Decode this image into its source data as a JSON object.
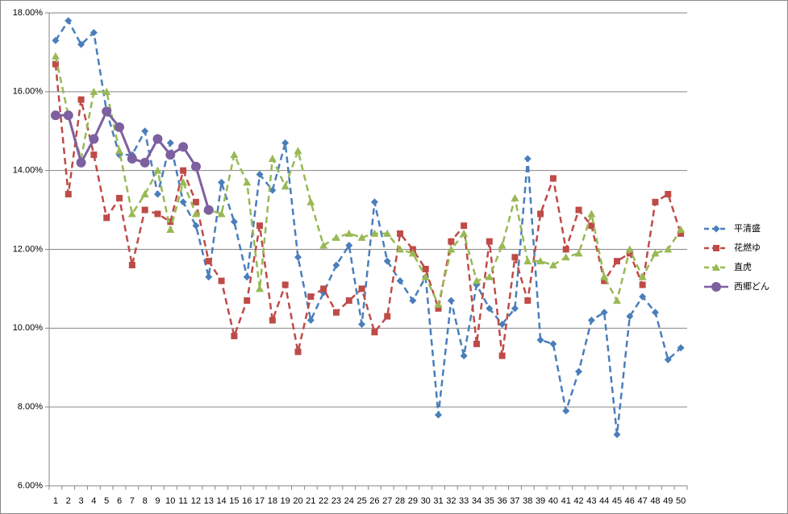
{
  "chart_data": {
    "type": "line",
    "categories": [
      "1",
      "2",
      "3",
      "4",
      "5",
      "6",
      "7",
      "8",
      "9",
      "10",
      "11",
      "12",
      "13",
      "14",
      "15",
      "16",
      "17",
      "18",
      "19",
      "20",
      "21",
      "22",
      "23",
      "24",
      "25",
      "26",
      "27",
      "28",
      "29",
      "30",
      "31",
      "32",
      "33",
      "34",
      "35",
      "36",
      "37",
      "38",
      "39",
      "40",
      "41",
      "42",
      "43",
      "44",
      "45",
      "46",
      "47",
      "48",
      "49",
      "50"
    ],
    "series": [
      {
        "name": "平清盛",
        "color": "#4a7ebb",
        "marker": "diamond",
        "line_style": "dashed",
        "values": [
          17.3,
          17.8,
          17.2,
          17.5,
          15.5,
          14.4,
          14.4,
          15.0,
          13.4,
          14.7,
          13.2,
          12.6,
          11.3,
          13.7,
          12.7,
          11.3,
          13.9,
          13.5,
          14.7,
          11.8,
          10.2,
          10.9,
          11.6,
          12.1,
          10.1,
          13.2,
          11.7,
          11.2,
          10.7,
          11.3,
          7.8,
          10.7,
          9.3,
          11.1,
          10.5,
          10.1,
          10.5,
          14.3,
          9.7,
          9.6,
          7.9,
          8.9,
          10.2,
          10.4,
          7.3,
          10.3,
          10.8,
          10.4,
          9.2,
          9.5
        ]
      },
      {
        "name": "花燃ゆ",
        "color": "#be4b48",
        "marker": "square",
        "line_style": "dashed",
        "values": [
          16.7,
          13.4,
          15.8,
          14.4,
          12.8,
          13.3,
          11.6,
          13.0,
          12.9,
          12.7,
          14.0,
          13.2,
          11.7,
          11.2,
          9.8,
          10.7,
          12.6,
          10.2,
          11.1,
          9.4,
          10.8,
          11.0,
          10.4,
          10.7,
          11.0,
          9.9,
          10.3,
          12.4,
          12.0,
          11.5,
          10.5,
          12.2,
          12.6,
          9.6,
          12.2,
          9.3,
          11.8,
          10.7,
          12.9,
          13.8,
          12.0,
          13.0,
          12.6,
          11.2,
          11.7,
          11.9,
          11.1,
          13.2,
          13.4,
          12.4
        ]
      },
      {
        "name": "直虎",
        "color": "#98b954",
        "marker": "triangle",
        "line_style": "dashed",
        "values": [
          16.9,
          15.4,
          14.3,
          16.0,
          16.0,
          14.5,
          12.9,
          13.4,
          14.0,
          12.5,
          13.7,
          12.9,
          13.0,
          12.9,
          14.4,
          13.7,
          11.0,
          14.3,
          13.6,
          14.5,
          13.2,
          12.1,
          12.3,
          12.4,
          12.3,
          12.4,
          12.4,
          12.0,
          11.9,
          11.3,
          10.6,
          12.0,
          12.4,
          11.2,
          11.3,
          12.1,
          13.3,
          11.7,
          11.7,
          11.6,
          11.8,
          11.9,
          12.9,
          11.3,
          10.7,
          12.0,
          11.3,
          11.9,
          12.0,
          12.5
        ]
      },
      {
        "name": "西郷どん",
        "color": "#7d60a0",
        "marker": "circle",
        "line_style": "solid",
        "values": [
          15.4,
          15.4,
          14.2,
          14.8,
          15.5,
          15.1,
          14.3,
          14.2,
          14.8,
          14.4,
          14.6,
          14.1,
          13.0,
          null,
          null,
          null,
          null,
          null,
          null,
          null,
          null,
          null,
          null,
          null,
          null,
          null,
          null,
          null,
          null,
          null,
          null,
          null,
          null,
          null,
          null,
          null,
          null,
          null,
          null,
          null,
          null,
          null,
          null,
          null,
          null,
          null,
          null,
          null,
          null,
          null
        ]
      }
    ],
    "ylim": [
      6,
      18
    ],
    "yticks": [
      {
        "value": 6,
        "label": "6.00%"
      },
      {
        "value": 8,
        "label": "8.00%"
      },
      {
        "value": 10,
        "label": "10.00%"
      },
      {
        "value": 12,
        "label": "12.00%"
      },
      {
        "value": 14,
        "label": "14.00%"
      },
      {
        "value": 16,
        "label": "16.00%"
      },
      {
        "value": 18,
        "label": "18.00%"
      }
    ],
    "grid": true,
    "legend": "right"
  }
}
